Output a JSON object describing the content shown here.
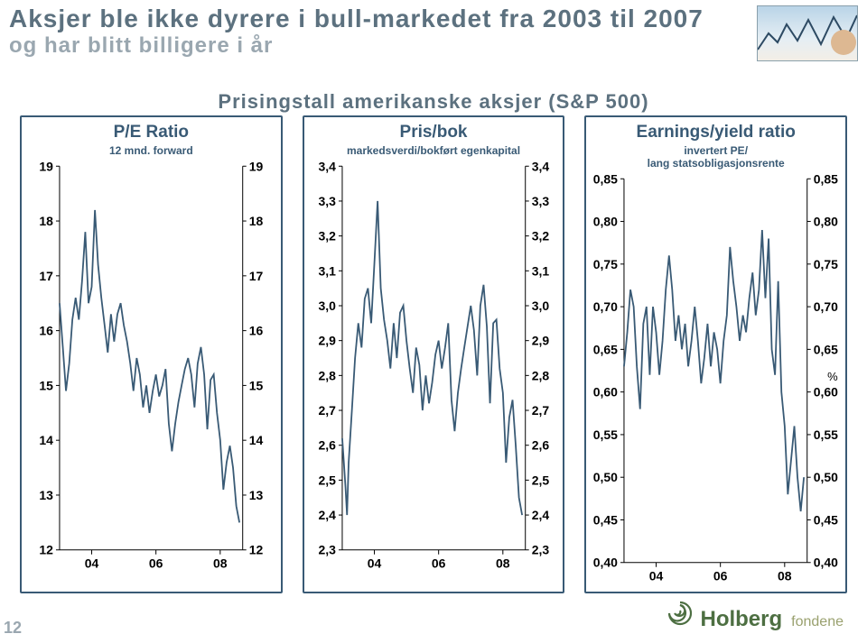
{
  "header": {
    "title": "Aksjer ble ikke dyrere i bull-markedet fra 2003 til 2007",
    "subtitle": "og har blitt billigere i år",
    "over_title": "Prisingstall amerikanske aksjer (S&P 500)"
  },
  "colors": {
    "border": "#395a75",
    "series": "#395a75",
    "title": "#5c717f",
    "subtitle": "#9aa7b0",
    "axis": "#000000",
    "background": "#ffffff"
  },
  "stroke": {
    "series_width": 1.8,
    "axis_width": 1
  },
  "fonts": {
    "title_pt": 28,
    "subtitle_pt": 24,
    "panel_title_pt": 19,
    "panel_sub_pt": 12,
    "tick_pt": 14
  },
  "x_axis": {
    "min": 2003,
    "max": 2008.7,
    "ticks": [
      2004,
      2006,
      2008
    ],
    "labels": [
      "04",
      "06",
      "08"
    ]
  },
  "panels": [
    {
      "id": "pe",
      "title": "P/E Ratio",
      "subtitle": "12 mnd. forward",
      "ymin": 12,
      "ymax": 19,
      "yticks": [
        12,
        13,
        14,
        15,
        16,
        17,
        18,
        19
      ],
      "ytick_labels": [
        "12",
        "13",
        "14",
        "15",
        "16",
        "17",
        "18",
        "19"
      ],
      "series": [
        {
          "color": "#395a75",
          "points": [
            [
              2003.0,
              16.5
            ],
            [
              2003.1,
              15.7
            ],
            [
              2003.2,
              14.9
            ],
            [
              2003.3,
              15.4
            ],
            [
              2003.4,
              16.2
            ],
            [
              2003.5,
              16.6
            ],
            [
              2003.6,
              16.2
            ],
            [
              2003.7,
              16.9
            ],
            [
              2003.8,
              17.8
            ],
            [
              2003.9,
              16.5
            ],
            [
              2004.0,
              16.8
            ],
            [
              2004.1,
              18.2
            ],
            [
              2004.2,
              17.2
            ],
            [
              2004.3,
              16.6
            ],
            [
              2004.4,
              16.1
            ],
            [
              2004.5,
              15.6
            ],
            [
              2004.6,
              16.3
            ],
            [
              2004.7,
              15.8
            ],
            [
              2004.8,
              16.3
            ],
            [
              2004.9,
              16.5
            ],
            [
              2005.0,
              16.1
            ],
            [
              2005.1,
              15.8
            ],
            [
              2005.2,
              15.4
            ],
            [
              2005.3,
              14.9
            ],
            [
              2005.4,
              15.5
            ],
            [
              2005.5,
              15.2
            ],
            [
              2005.6,
              14.6
            ],
            [
              2005.7,
              15.0
            ],
            [
              2005.8,
              14.5
            ],
            [
              2005.9,
              14.9
            ],
            [
              2006.0,
              15.2
            ],
            [
              2006.1,
              14.8
            ],
            [
              2006.2,
              15.0
            ],
            [
              2006.3,
              15.3
            ],
            [
              2006.4,
              14.3
            ],
            [
              2006.5,
              13.8
            ],
            [
              2006.6,
              14.3
            ],
            [
              2006.7,
              14.7
            ],
            [
              2006.8,
              15.0
            ],
            [
              2006.9,
              15.3
            ],
            [
              2007.0,
              15.5
            ],
            [
              2007.1,
              15.2
            ],
            [
              2007.2,
              14.6
            ],
            [
              2007.3,
              15.4
            ],
            [
              2007.4,
              15.7
            ],
            [
              2007.5,
              15.2
            ],
            [
              2007.6,
              14.2
            ],
            [
              2007.7,
              15.1
            ],
            [
              2007.8,
              15.2
            ],
            [
              2007.9,
              14.5
            ],
            [
              2008.0,
              14.0
            ],
            [
              2008.1,
              13.1
            ],
            [
              2008.2,
              13.6
            ],
            [
              2008.3,
              13.9
            ],
            [
              2008.4,
              13.5
            ],
            [
              2008.5,
              12.8
            ],
            [
              2008.6,
              12.5
            ]
          ]
        }
      ]
    },
    {
      "id": "pb",
      "title": "Pris/bok",
      "subtitle": "markedsverdi/bokført egenkapital",
      "ymin": 2.3,
      "ymax": 3.4,
      "yticks": [
        2.3,
        2.4,
        2.5,
        2.6,
        2.7,
        2.8,
        2.9,
        3.0,
        3.1,
        3.2,
        3.3,
        3.4
      ],
      "ytick_labels": [
        "2,3",
        "2,4",
        "2,5",
        "2,6",
        "2,7",
        "2,8",
        "2,9",
        "3,0",
        "3,1",
        "3,2",
        "3,3",
        "3,4"
      ],
      "series": [
        {
          "color": "#395a75",
          "points": [
            [
              2003.0,
              2.62
            ],
            [
              2003.1,
              2.48
            ],
            [
              2003.15,
              2.4
            ],
            [
              2003.2,
              2.55
            ],
            [
              2003.3,
              2.7
            ],
            [
              2003.4,
              2.85
            ],
            [
              2003.5,
              2.95
            ],
            [
              2003.6,
              2.88
            ],
            [
              2003.7,
              3.02
            ],
            [
              2003.8,
              3.05
            ],
            [
              2003.9,
              2.95
            ],
            [
              2004.0,
              3.12
            ],
            [
              2004.1,
              3.3
            ],
            [
              2004.2,
              3.05
            ],
            [
              2004.3,
              2.96
            ],
            [
              2004.4,
              2.9
            ],
            [
              2004.5,
              2.82
            ],
            [
              2004.6,
              2.95
            ],
            [
              2004.7,
              2.85
            ],
            [
              2004.8,
              2.98
            ],
            [
              2004.9,
              3.0
            ],
            [
              2005.0,
              2.9
            ],
            [
              2005.1,
              2.82
            ],
            [
              2005.2,
              2.75
            ],
            [
              2005.3,
              2.88
            ],
            [
              2005.4,
              2.83
            ],
            [
              2005.5,
              2.7
            ],
            [
              2005.6,
              2.8
            ],
            [
              2005.7,
              2.72
            ],
            [
              2005.8,
              2.78
            ],
            [
              2005.9,
              2.86
            ],
            [
              2006.0,
              2.9
            ],
            [
              2006.1,
              2.82
            ],
            [
              2006.2,
              2.88
            ],
            [
              2006.3,
              2.95
            ],
            [
              2006.4,
              2.73
            ],
            [
              2006.5,
              2.64
            ],
            [
              2006.6,
              2.75
            ],
            [
              2006.7,
              2.82
            ],
            [
              2006.8,
              2.88
            ],
            [
              2006.9,
              2.94
            ],
            [
              2007.0,
              3.0
            ],
            [
              2007.1,
              2.93
            ],
            [
              2007.2,
              2.8
            ],
            [
              2007.3,
              3.0
            ],
            [
              2007.4,
              3.06
            ],
            [
              2007.5,
              2.94
            ],
            [
              2007.6,
              2.72
            ],
            [
              2007.7,
              2.95
            ],
            [
              2007.8,
              2.96
            ],
            [
              2007.9,
              2.82
            ],
            [
              2008.0,
              2.75
            ],
            [
              2008.1,
              2.55
            ],
            [
              2008.2,
              2.68
            ],
            [
              2008.3,
              2.73
            ],
            [
              2008.4,
              2.6
            ],
            [
              2008.5,
              2.45
            ],
            [
              2008.6,
              2.4
            ]
          ]
        }
      ]
    },
    {
      "id": "ey",
      "title": "Earnings/yield ratio",
      "subtitle": "invertert PE/\nlang statsobligasjonsrente",
      "ymin": 0.4,
      "ymax": 0.85,
      "yticks": [
        0.4,
        0.45,
        0.5,
        0.55,
        0.6,
        0.65,
        0.7,
        0.75,
        0.8,
        0.85
      ],
      "ytick_labels": [
        "0,40",
        "0,45",
        "0,50",
        "0,55",
        "0,60",
        "0,65",
        "0,70",
        "0,75",
        "0,80",
        "0,85"
      ],
      "right_axis_label": "%",
      "series": [
        {
          "color": "#395a75",
          "points": [
            [
              2003.0,
              0.63
            ],
            [
              2003.1,
              0.67
            ],
            [
              2003.2,
              0.72
            ],
            [
              2003.3,
              0.7
            ],
            [
              2003.4,
              0.63
            ],
            [
              2003.5,
              0.58
            ],
            [
              2003.6,
              0.68
            ],
            [
              2003.7,
              0.7
            ],
            [
              2003.8,
              0.62
            ],
            [
              2003.9,
              0.7
            ],
            [
              2004.0,
              0.67
            ],
            [
              2004.1,
              0.62
            ],
            [
              2004.2,
              0.66
            ],
            [
              2004.3,
              0.72
            ],
            [
              2004.4,
              0.76
            ],
            [
              2004.5,
              0.72
            ],
            [
              2004.6,
              0.66
            ],
            [
              2004.7,
              0.69
            ],
            [
              2004.8,
              0.65
            ],
            [
              2004.9,
              0.68
            ],
            [
              2005.0,
              0.63
            ],
            [
              2005.1,
              0.66
            ],
            [
              2005.2,
              0.7
            ],
            [
              2005.3,
              0.66
            ],
            [
              2005.4,
              0.61
            ],
            [
              2005.5,
              0.64
            ],
            [
              2005.6,
              0.68
            ],
            [
              2005.7,
              0.63
            ],
            [
              2005.8,
              0.67
            ],
            [
              2005.9,
              0.65
            ],
            [
              2006.0,
              0.61
            ],
            [
              2006.1,
              0.66
            ],
            [
              2006.2,
              0.69
            ],
            [
              2006.3,
              0.77
            ],
            [
              2006.4,
              0.73
            ],
            [
              2006.5,
              0.7
            ],
            [
              2006.6,
              0.66
            ],
            [
              2006.7,
              0.69
            ],
            [
              2006.8,
              0.67
            ],
            [
              2006.9,
              0.71
            ],
            [
              2007.0,
              0.74
            ],
            [
              2007.1,
              0.69
            ],
            [
              2007.2,
              0.72
            ],
            [
              2007.3,
              0.79
            ],
            [
              2007.4,
              0.71
            ],
            [
              2007.5,
              0.78
            ],
            [
              2007.6,
              0.65
            ],
            [
              2007.7,
              0.62
            ],
            [
              2007.8,
              0.73
            ],
            [
              2007.9,
              0.6
            ],
            [
              2008.0,
              0.56
            ],
            [
              2008.1,
              0.48
            ],
            [
              2008.2,
              0.52
            ],
            [
              2008.3,
              0.56
            ],
            [
              2008.4,
              0.5
            ],
            [
              2008.5,
              0.46
            ],
            [
              2008.6,
              0.5
            ]
          ]
        }
      ]
    }
  ],
  "page_number": "12",
  "logo": {
    "name": "Holberg",
    "sub": "fondene",
    "swirl_color": "#4d6f42",
    "sub_color": "#9aa16f"
  }
}
